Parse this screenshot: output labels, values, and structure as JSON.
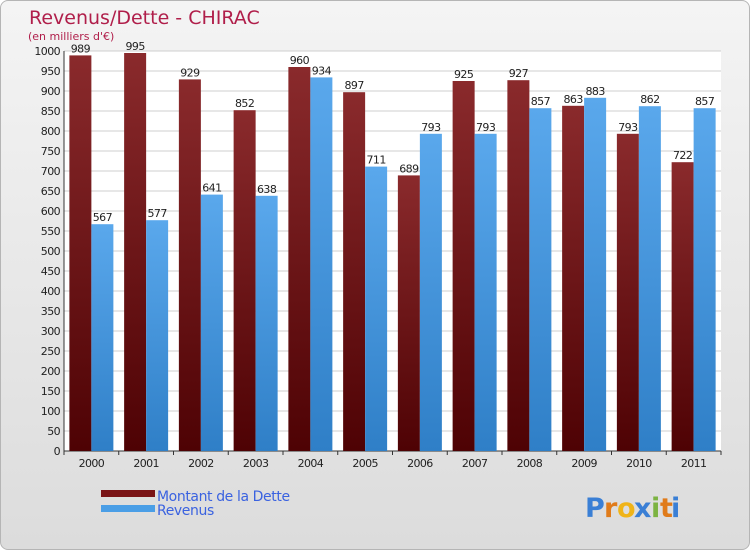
{
  "chart_data": {
    "type": "bar",
    "title": "Revenus/Dette - CHIRAC",
    "subtitle": "(en milliers d'€)",
    "categories": [
      "2000",
      "2001",
      "2002",
      "2003",
      "2004",
      "2005",
      "2006",
      "2007",
      "2008",
      "2009",
      "2010",
      "2011"
    ],
    "series": [
      {
        "name": "Montant de la Dette",
        "values": [
          989,
          995,
          929,
          852,
          960,
          897,
          689,
          925,
          927,
          863,
          793,
          722
        ],
        "color": "#7a1416"
      },
      {
        "name": "Revenus",
        "values": [
          567,
          577,
          641,
          638,
          934,
          711,
          793,
          793,
          857,
          883,
          862,
          857
        ],
        "color": "#4a9ee6"
      }
    ],
    "ylim": [
      0,
      1000
    ],
    "ytick_step": 50,
    "grid": true,
    "legend_position": "bottom-left"
  },
  "logo": {
    "letters": [
      "P",
      "r",
      "o",
      "x",
      "i",
      "t",
      "i"
    ],
    "colors": [
      "#3a7fd5",
      "#e07b1a",
      "#f0b418",
      "#3a7fd5",
      "#7cb342",
      "#e07b1a",
      "#3a7fd5"
    ]
  }
}
